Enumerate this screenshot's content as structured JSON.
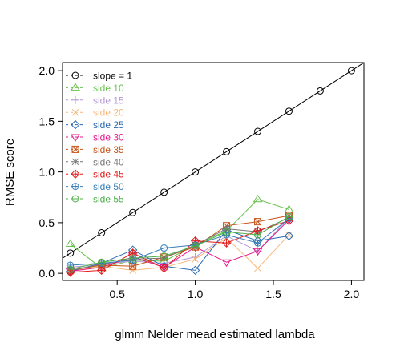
{
  "chart_data": {
    "type": "line",
    "title": "",
    "xlabel": "glmm Nelder mead estimated lambda",
    "ylabel": "RMSE score",
    "xlim": [
      0.15,
      2.08
    ],
    "ylim": [
      -0.07,
      2.08
    ],
    "xticks": [
      0.5,
      1.0,
      1.5,
      2.0
    ],
    "xtick_labels": [
      "0.5",
      "1.0",
      "1.5",
      "2.0"
    ],
    "yticks": [
      0.0,
      0.5,
      1.0,
      1.5,
      2.0
    ],
    "ytick_labels": [
      "0.0",
      "0.5",
      "1.0",
      "1.5",
      "2.0"
    ],
    "grid": false,
    "legend_position": "top-left",
    "reference": {
      "name": "slope = 1",
      "color": "#000000",
      "marker": "circle",
      "x": [
        0.2,
        0.4,
        0.6,
        0.8,
        1.0,
        1.2,
        1.4,
        1.6,
        1.8,
        2.0
      ],
      "y": [
        0.2,
        0.4,
        0.6,
        0.8,
        1.0,
        1.2,
        1.4,
        1.6,
        1.8,
        2.0
      ]
    },
    "x": [
      0.2,
      0.4,
      0.6,
      0.8,
      1.0,
      1.2,
      1.4,
      1.6
    ],
    "series": [
      {
        "name": "side 10",
        "color": "#66c24a",
        "marker": "triangle-up",
        "values": [
          0.29,
          0.05,
          0.13,
          0.12,
          0.28,
          0.42,
          0.73,
          0.63
        ]
      },
      {
        "name": "side 15",
        "color": "#b499d4",
        "marker": "plus",
        "values": [
          0.06,
          0.09,
          0.12,
          0.1,
          0.16,
          0.37,
          0.22,
          0.55
        ]
      },
      {
        "name": "side 20",
        "color": "#f5b87a",
        "marker": "cross",
        "values": [
          0.02,
          0.07,
          0.03,
          0.06,
          0.14,
          0.35,
          0.05,
          0.38
        ]
      },
      {
        "name": "side 25",
        "color": "#2b6ab0",
        "marker": "diamond",
        "values": [
          0.02,
          0.1,
          0.23,
          0.07,
          0.03,
          0.43,
          0.32,
          0.37
        ]
      },
      {
        "name": "side 30",
        "color": "#e7198a",
        "marker": "triangle-down",
        "values": [
          0.02,
          0.06,
          0.16,
          0.06,
          0.26,
          0.11,
          0.22,
          0.53
        ]
      },
      {
        "name": "side 35",
        "color": "#c7541a",
        "marker": "square-x",
        "values": [
          0.03,
          0.08,
          0.07,
          0.16,
          0.26,
          0.47,
          0.51,
          0.57
        ]
      },
      {
        "name": "side 40",
        "color": "#777777",
        "marker": "star",
        "values": [
          0.03,
          0.09,
          0.14,
          0.15,
          0.28,
          0.44,
          0.41,
          0.55
        ]
      },
      {
        "name": "side 45",
        "color": "#e31a1c",
        "marker": "diamond-plus",
        "values": [
          0.01,
          0.03,
          0.2,
          0.05,
          0.32,
          0.3,
          0.42,
          0.52
        ]
      },
      {
        "name": "side 50",
        "color": "#377eb8",
        "marker": "circle-plus",
        "values": [
          0.08,
          0.1,
          0.13,
          0.25,
          0.28,
          0.38,
          0.3,
          0.54
        ]
      },
      {
        "name": "side 55",
        "color": "#4daf4a",
        "marker": "circle-minus",
        "values": [
          0.04,
          0.11,
          0.15,
          0.17,
          0.27,
          0.41,
          0.38,
          0.56
        ]
      }
    ]
  }
}
